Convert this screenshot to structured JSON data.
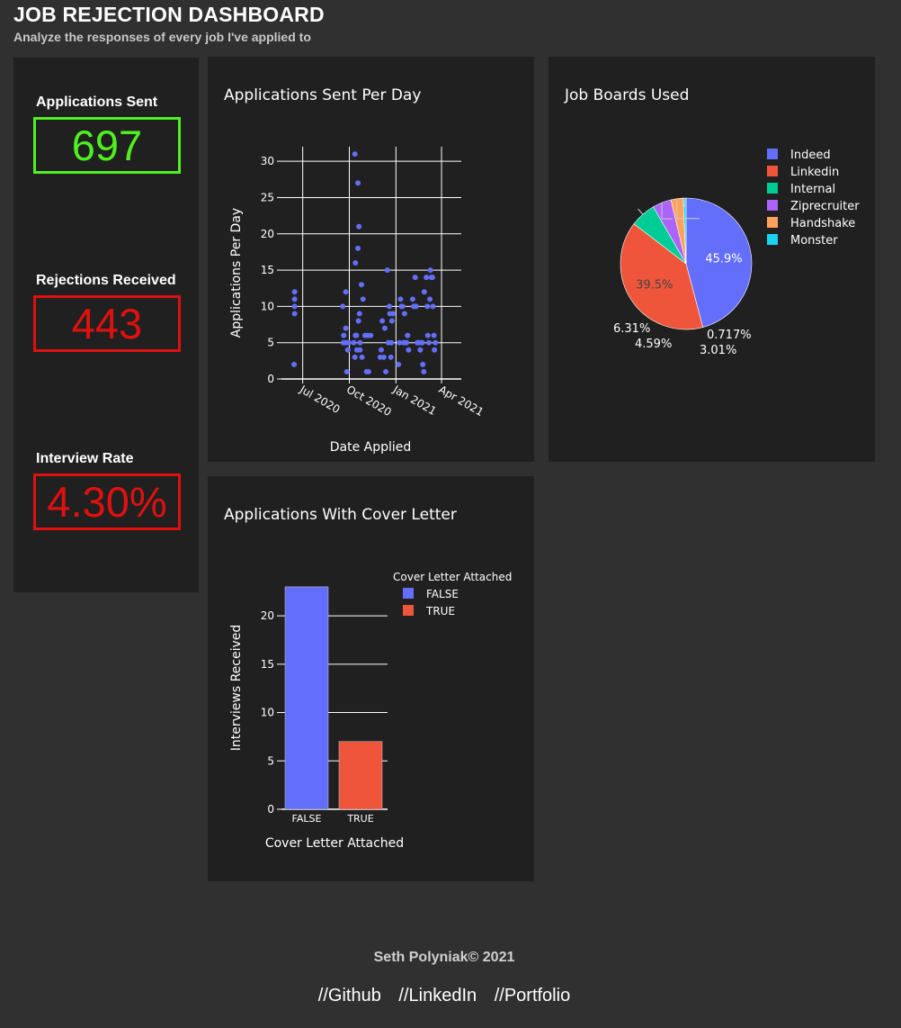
{
  "header": {
    "title": "JOB REJECTION DASHBOARD",
    "subtitle": "Analyze the responses of every job I've applied to"
  },
  "kpis": {
    "sent": {
      "label": "Applications Sent",
      "value": "697",
      "color": "#4ff01f"
    },
    "rejections": {
      "label": "Rejections Received",
      "value": "443",
      "color": "#e01010"
    },
    "interview_rate": {
      "label": "Interview Rate",
      "value": "4.30%",
      "color": "#e01010"
    }
  },
  "scatter": {
    "title": "Applications Sent Per Day",
    "xlabel": "Date Applied",
    "ylabel": "Applications Per Day",
    "x_ticks": [
      "Jul 2020",
      "Oct 2020",
      "Jan 2021",
      "Apr 2021"
    ],
    "y_ticks": [
      "0",
      "5",
      "10",
      "15",
      "20",
      "25",
      "30"
    ]
  },
  "pie": {
    "title": "Job Boards Used"
  },
  "bar": {
    "title": "Applications With Cover Letter",
    "xlabel": "Cover Letter Attached",
    "ylabel": "Interviews Received",
    "legend_title": "Cover Letter Attached",
    "y_ticks": [
      "0",
      "5",
      "10",
      "15",
      "20"
    ]
  },
  "chart_data": [
    {
      "type": "scatter",
      "title": "Applications Sent Per Day",
      "xlabel": "Date Applied",
      "ylabel": "Applications Per Day",
      "ylim": [
        0,
        32
      ],
      "xlim": [
        "2020-05-20",
        "2021-05-10"
      ],
      "grid": true,
      "color": "#636efa",
      "points": [
        {
          "x": "2020-06-15",
          "y": 12
        },
        {
          "x": "2020-06-15",
          "y": 11
        },
        {
          "x": "2020-06-15",
          "y": 10
        },
        {
          "x": "2020-06-15",
          "y": 9
        },
        {
          "x": "2020-06-14",
          "y": 2
        },
        {
          "x": "2020-09-18",
          "y": 10
        },
        {
          "x": "2020-09-20",
          "y": 6
        },
        {
          "x": "2020-09-19",
          "y": 5
        },
        {
          "x": "2020-09-22",
          "y": 5
        },
        {
          "x": "2020-09-24",
          "y": 12
        },
        {
          "x": "2020-09-24",
          "y": 7
        },
        {
          "x": "2020-09-25",
          "y": 5
        },
        {
          "x": "2020-09-26",
          "y": 1
        },
        {
          "x": "2020-09-28",
          "y": 4
        },
        {
          "x": "2020-09-30",
          "y": 5
        },
        {
          "x": "2020-10-10",
          "y": 5
        },
        {
          "x": "2020-10-12",
          "y": 3
        },
        {
          "x": "2020-10-13",
          "y": 6
        },
        {
          "x": "2020-10-13",
          "y": 16
        },
        {
          "x": "2020-10-12",
          "y": 31
        },
        {
          "x": "2020-10-15",
          "y": 6
        },
        {
          "x": "2020-10-16",
          "y": 4
        },
        {
          "x": "2020-10-18",
          "y": 27
        },
        {
          "x": "2020-10-18",
          "y": 18
        },
        {
          "x": "2020-10-20",
          "y": 21
        },
        {
          "x": "2020-10-21",
          "y": 9
        },
        {
          "x": "2020-10-22",
          "y": 5
        },
        {
          "x": "2020-10-22",
          "y": 4
        },
        {
          "x": "2020-10-19",
          "y": 8
        },
        {
          "x": "2020-10-25",
          "y": 13
        },
        {
          "x": "2020-10-26",
          "y": 3
        },
        {
          "x": "2020-10-28",
          "y": 11
        },
        {
          "x": "2020-11-01",
          "y": 6
        },
        {
          "x": "2020-11-04",
          "y": 1
        },
        {
          "x": "2020-11-06",
          "y": 6
        },
        {
          "x": "2020-11-08",
          "y": 1
        },
        {
          "x": "2020-11-12",
          "y": 6
        },
        {
          "x": "2020-12-01",
          "y": 3
        },
        {
          "x": "2020-12-03",
          "y": 4
        },
        {
          "x": "2020-12-05",
          "y": 8
        },
        {
          "x": "2020-12-08",
          "y": 3
        },
        {
          "x": "2020-12-10",
          "y": 7
        },
        {
          "x": "2020-12-12",
          "y": 1
        },
        {
          "x": "2020-12-15",
          "y": 15
        },
        {
          "x": "2020-12-17",
          "y": 5
        },
        {
          "x": "2020-12-19",
          "y": 10
        },
        {
          "x": "2020-12-20",
          "y": 9
        },
        {
          "x": "2020-12-22",
          "y": 3
        },
        {
          "x": "2020-12-23",
          "y": 5
        },
        {
          "x": "2020-12-24",
          "y": 8
        },
        {
          "x": "2020-12-26",
          "y": 9
        },
        {
          "x": "2021-01-06",
          "y": 2
        },
        {
          "x": "2021-01-08",
          "y": 5
        },
        {
          "x": "2021-01-10",
          "y": 11
        },
        {
          "x": "2021-01-12",
          "y": 10
        },
        {
          "x": "2021-01-14",
          "y": 10
        },
        {
          "x": "2021-01-16",
          "y": 5
        },
        {
          "x": "2021-01-18",
          "y": 9
        },
        {
          "x": "2021-01-20",
          "y": 5
        },
        {
          "x": "2021-01-22",
          "y": 5
        },
        {
          "x": "2021-01-24",
          "y": 6
        },
        {
          "x": "2021-01-26",
          "y": 4
        },
        {
          "x": "2021-02-03",
          "y": 11
        },
        {
          "x": "2021-02-05",
          "y": 10
        },
        {
          "x": "2021-02-07",
          "y": 10
        },
        {
          "x": "2021-02-08",
          "y": 14
        },
        {
          "x": "2021-02-10",
          "y": 10
        },
        {
          "x": "2021-02-12",
          "y": 5
        },
        {
          "x": "2021-02-14",
          "y": 5
        },
        {
          "x": "2021-02-15",
          "y": 5
        },
        {
          "x": "2021-02-18",
          "y": 4
        },
        {
          "x": "2021-02-20",
          "y": 5
        },
        {
          "x": "2021-02-22",
          "y": 5
        },
        {
          "x": "2021-02-23",
          "y": 2
        },
        {
          "x": "2021-02-25",
          "y": 1
        },
        {
          "x": "2021-02-26",
          "y": 12
        },
        {
          "x": "2021-03-02",
          "y": 14
        },
        {
          "x": "2021-03-04",
          "y": 10
        },
        {
          "x": "2021-03-05",
          "y": 6
        },
        {
          "x": "2021-03-07",
          "y": 5
        },
        {
          "x": "2021-03-09",
          "y": 11
        },
        {
          "x": "2021-03-10",
          "y": 15
        },
        {
          "x": "2021-03-12",
          "y": 14
        },
        {
          "x": "2021-03-14",
          "y": 14
        },
        {
          "x": "2021-03-15",
          "y": 10
        },
        {
          "x": "2021-03-17",
          "y": 6
        },
        {
          "x": "2021-03-18",
          "y": 4
        },
        {
          "x": "2021-03-20",
          "y": 5
        }
      ]
    },
    {
      "type": "pie",
      "title": "Job Boards Used",
      "legend_position": "top-right",
      "labels": [
        "Indeed",
        "Linkedin",
        "Internal",
        "Ziprecruiter",
        "Handshake",
        "Monster"
      ],
      "values": [
        45.9,
        39.5,
        6.31,
        4.59,
        3.01,
        0.717
      ],
      "value_labels": [
        "45.9%",
        "39.5%",
        "6.31%",
        "4.59%",
        "3.01%",
        "0.717%"
      ],
      "colors": [
        "#636efa",
        "#ef553b",
        "#00cc96",
        "#ab63fa",
        "#ffa15a",
        "#19d3f3"
      ]
    },
    {
      "type": "bar",
      "title": "Applications With Cover Letter",
      "xlabel": "Cover Letter Attached",
      "ylabel": "Interviews Received",
      "legend_title": "Cover Letter Attached",
      "legend_position": "top-right",
      "ylim": [
        0,
        24.2
      ],
      "categories": [
        "FALSE",
        "TRUE"
      ],
      "values": [
        23,
        7
      ],
      "colors": [
        "#636efa",
        "#ef553b"
      ]
    }
  ],
  "footer": {
    "credit": "Seth Polyniak© 2021",
    "links": [
      "//Github",
      "//LinkedIn",
      "//Portfolio"
    ]
  }
}
